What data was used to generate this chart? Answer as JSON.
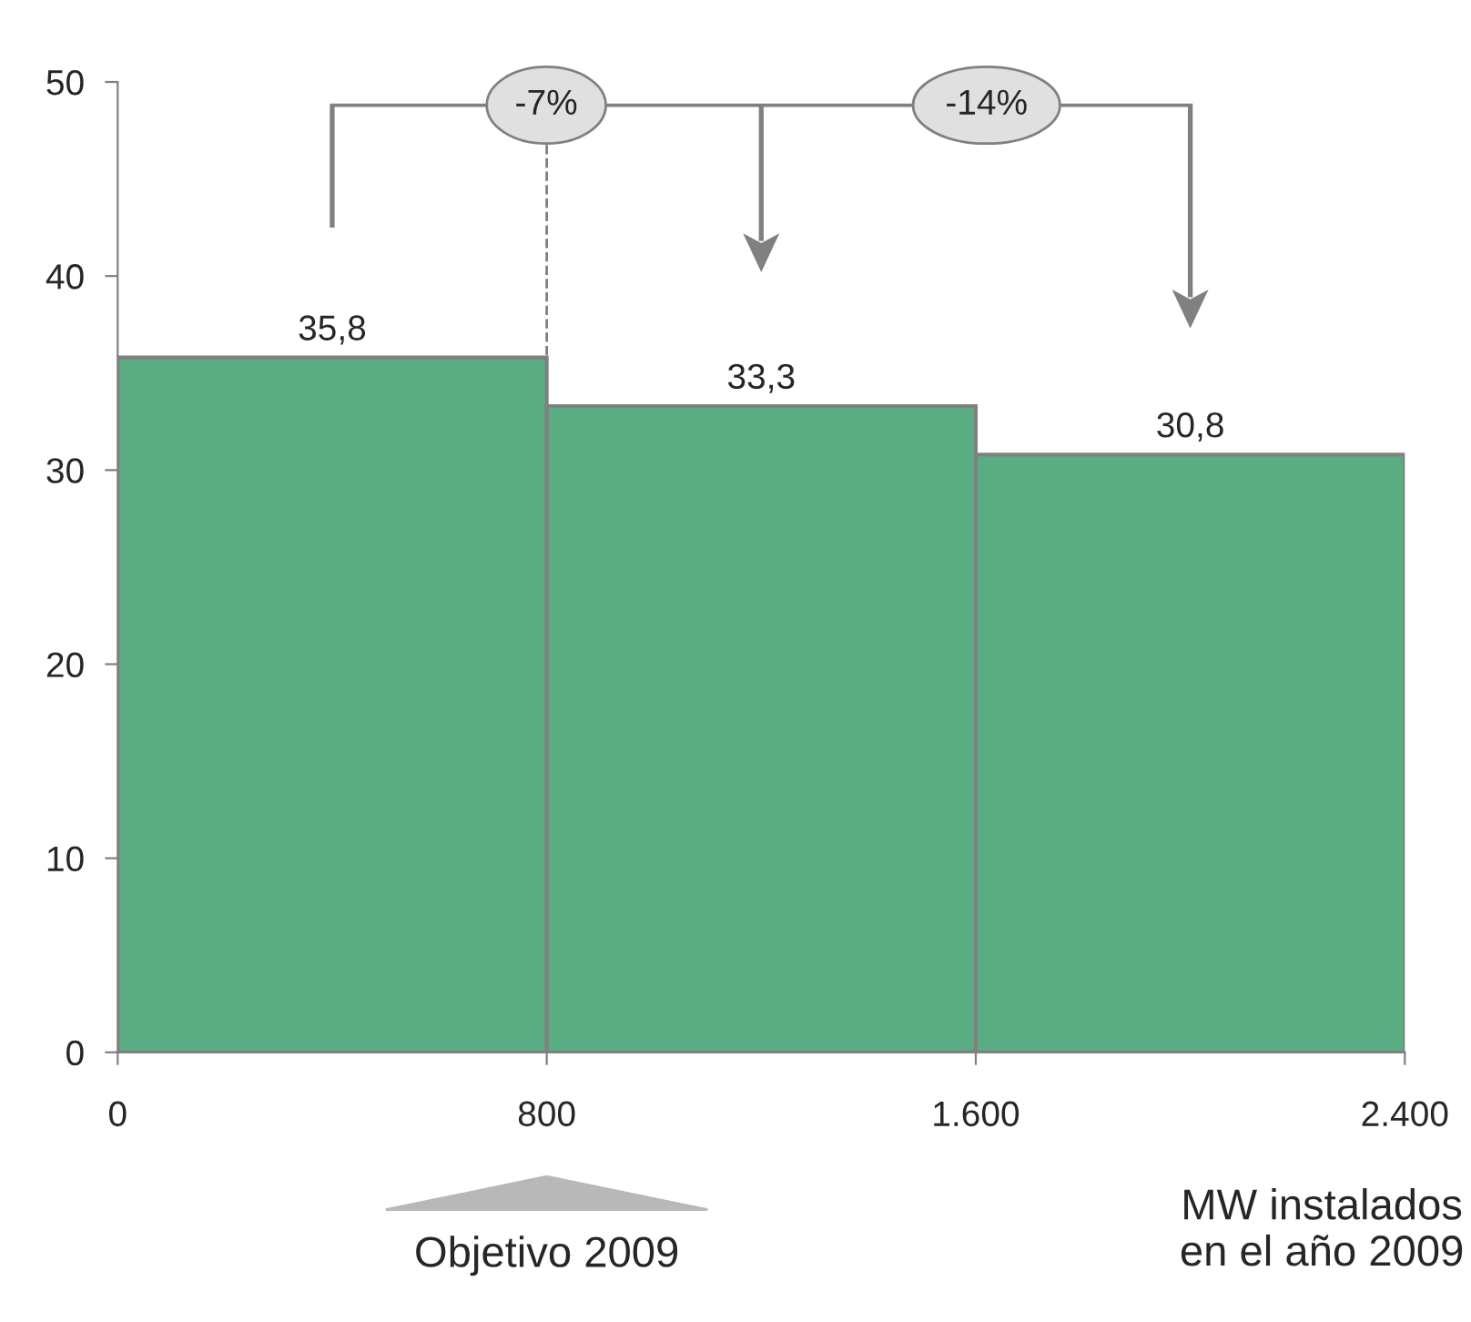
{
  "chart_data": {
    "type": "histogram",
    "bins": [
      0,
      800,
      1600,
      2400
    ],
    "values": [
      35.8,
      33.3,
      30.8
    ],
    "value_labels": [
      "35,8",
      "33,3",
      "30,8"
    ],
    "color": "#5aad82",
    "xlabel": "MW instalados\nen el año 2009",
    "xlim": [
      0,
      2400
    ],
    "xticks": [
      0,
      800,
      {
        "value": 1600,
        "label": "1.600"
      },
      {
        "value": 2400,
        "label": "2.400"
      }
    ],
    "ylim": [
      0,
      50
    ],
    "yticks": [
      0,
      10,
      20,
      30,
      40,
      50
    ],
    "grid": false,
    "ref_lines": [
      {
        "axis": "x",
        "value": 800,
        "label": null,
        "color": "#808080",
        "line_style": "dashed"
      }
    ],
    "annotations": [
      "-7%",
      "-14%",
      "Objetivo 2009"
    ]
  }
}
